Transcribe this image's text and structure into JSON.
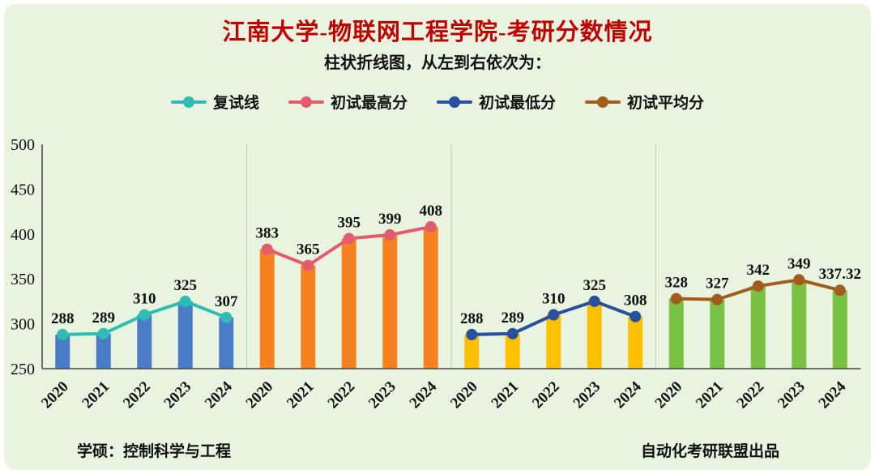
{
  "page": {
    "title": "江南大学-物联网工程学院-考研分数情况",
    "subtitle": "柱状折线图，从左到右依次为：",
    "footer_left": "学硕：控制科学与工程",
    "footer_right": "自动化考研联盟出品",
    "colors": {
      "background": "#e8f3e0",
      "title": "#c00000",
      "text": "#111111",
      "axis": "#444444",
      "separator": "#bccdb8"
    }
  },
  "legend": [
    {
      "label": "复试线",
      "color": "#2fbdb3"
    },
    {
      "label": "初试最高分",
      "color": "#e25c6e"
    },
    {
      "label": "初试最低分",
      "color": "#27509e"
    },
    {
      "label": "初试平均分",
      "color": "#a35b1e"
    }
  ],
  "chart_data": {
    "type": "bar",
    "subtype": "grouped bars with line-and-marker overlay, one group per series",
    "categories": [
      "2020",
      "2021",
      "2022",
      "2023",
      "2024"
    ],
    "ylim": [
      250,
      500
    ],
    "yticks": [
      250,
      300,
      350,
      400,
      450,
      500
    ],
    "grid": false,
    "legend_position": "top",
    "title": "江南大学-物联网工程学院-考研分数情况",
    "xlabel": "",
    "ylabel": "",
    "series": [
      {
        "name": "复试线",
        "bar_color": "#4a7cc7",
        "line_color": "#2fbdb3",
        "values": [
          288,
          289,
          310,
          325,
          307
        ]
      },
      {
        "name": "初试最高分",
        "bar_color": "#f5821f",
        "line_color": "#e25c6e",
        "values": [
          383,
          365,
          395,
          399,
          408
        ]
      },
      {
        "name": "初试最低分",
        "bar_color": "#ffc000",
        "line_color": "#27509e",
        "values": [
          288,
          289,
          310,
          325,
          308
        ]
      },
      {
        "name": "初试平均分",
        "bar_color": "#78c142",
        "line_color": "#a35b1e",
        "values": [
          328,
          327,
          342,
          349,
          337.32
        ]
      }
    ]
  }
}
